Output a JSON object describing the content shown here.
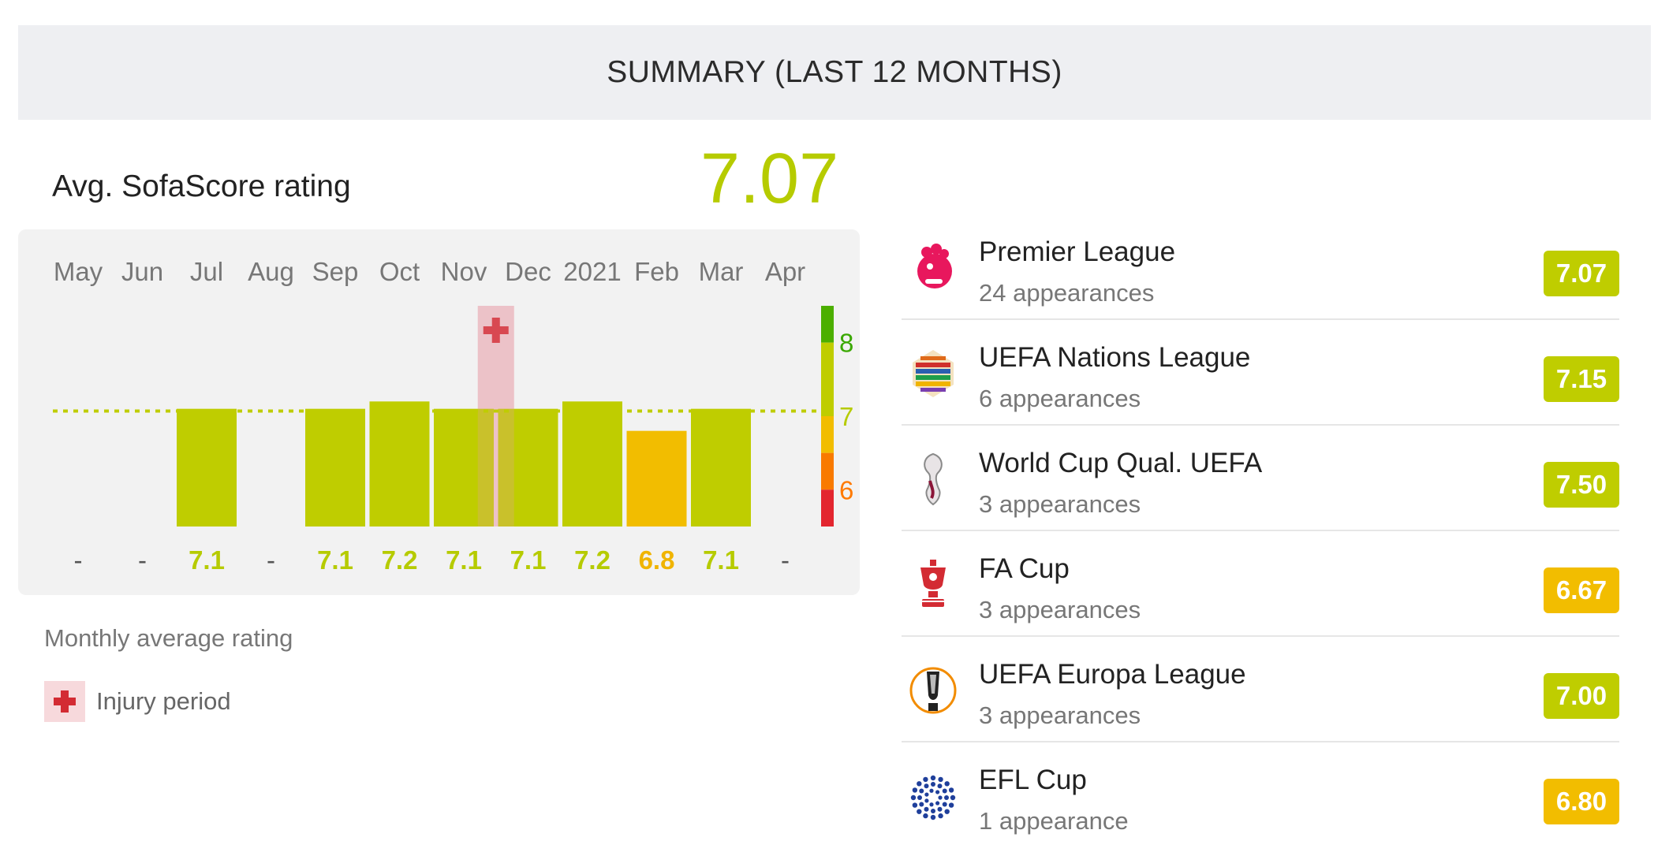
{
  "header": {
    "title": "SUMMARY (LAST 12 MONTHS)"
  },
  "average": {
    "label": "Avg. SofaScore rating",
    "value": "7.07"
  },
  "chart_data": {
    "type": "bar",
    "categories": [
      "May",
      "Jun",
      "Jul",
      "Aug",
      "Sep",
      "Oct",
      "Nov",
      "Dec",
      "2021",
      "Feb",
      "Mar",
      "Apr"
    ],
    "values": [
      null,
      null,
      7.1,
      null,
      7.1,
      7.2,
      7.1,
      7.1,
      7.2,
      6.8,
      7.1,
      null
    ],
    "value_labels": [
      "-",
      "-",
      "7.1",
      "-",
      "7.1",
      "7.2",
      "7.1",
      "7.1",
      "7.2",
      "6.8",
      "7.1",
      "-"
    ],
    "bar_colors": [
      null,
      null,
      "#bfcd00",
      null,
      "#bfcd00",
      "#bfcd00",
      "#bfcd00",
      "#bfcd00",
      "#bfcd00",
      "#f2bd00",
      "#bfcd00",
      null
    ],
    "label_colors": [
      "#555555",
      "#555555",
      "#b6cb00",
      "#555555",
      "#b6cb00",
      "#b6cb00",
      "#b6cb00",
      "#b6cb00",
      "#b6cb00",
      "#f0b400",
      "#b6cb00",
      "#555555"
    ],
    "average_line": 7.07,
    "ylim": [
      5.5,
      8.5
    ],
    "scale": {
      "ticks": [
        8,
        7,
        6
      ],
      "tick_colors": [
        "#3aa800",
        "#b6cb00",
        "#ff7a00"
      ],
      "bands": [
        {
          "from": 8,
          "to": 8.5,
          "color": "#4caf00"
        },
        {
          "from": 7,
          "to": 8,
          "color": "#bfcd00"
        },
        {
          "from": 6.5,
          "to": 7,
          "color": "#f2bd00"
        },
        {
          "from": 6,
          "to": 6.5,
          "color": "#f97a00"
        },
        {
          "from": 5.5,
          "to": 6,
          "color": "#e3262f"
        }
      ]
    },
    "injury_span": {
      "from": "Nov",
      "to": "Dec"
    },
    "caption": "Monthly average rating"
  },
  "legend": {
    "injury_label": "Injury period"
  },
  "tournaments": [
    {
      "name": "Premier League",
      "appearances": "24 appearances",
      "rating": "7.07",
      "color": "#bfcd00",
      "icon": "premier-league-logo"
    },
    {
      "name": "UEFA Nations League",
      "appearances": "6 appearances",
      "rating": "7.15",
      "color": "#bfcd00",
      "icon": "nations-league-logo"
    },
    {
      "name": "World Cup Qual. UEFA",
      "appearances": "3 appearances",
      "rating": "7.50",
      "color": "#bfcd00",
      "icon": "world-cup-logo"
    },
    {
      "name": "FA Cup",
      "appearances": "3 appearances",
      "rating": "6.67",
      "color": "#f2bd00",
      "icon": "fa-cup-logo"
    },
    {
      "name": "UEFA Europa League",
      "appearances": "3 appearances",
      "rating": "7.00",
      "color": "#bfcd00",
      "icon": "europa-league-logo"
    },
    {
      "name": "EFL Cup",
      "appearances": "1 appearance",
      "rating": "6.80",
      "color": "#f2bd00",
      "icon": "efl-cup-logo"
    }
  ]
}
